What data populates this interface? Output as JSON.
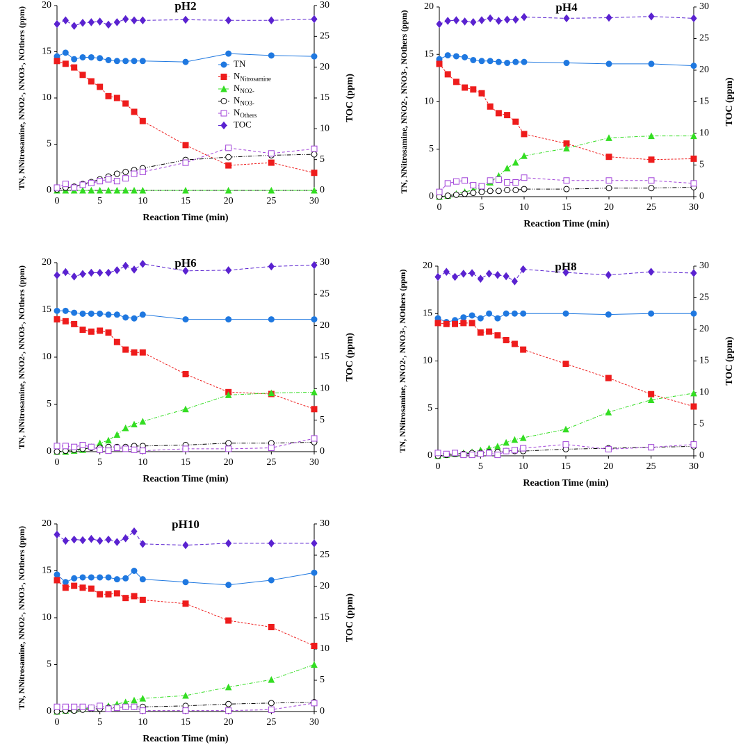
{
  "chart_data": [
    {
      "type": "line",
      "title": "pH2",
      "xlabel": "Reaction Time (min)",
      "ylabel": "TN, NNitrosamine, NNO2-, NNO3-, NOthers (ppm)",
      "y2label": "TOC (ppm)",
      "x": [
        0,
        1,
        2,
        3,
        4,
        5,
        6,
        7,
        8,
        9,
        10,
        15,
        20,
        25,
        30
      ],
      "xlim": [
        0,
        30
      ],
      "xticks": [
        0,
        5,
        10,
        15,
        20,
        25,
        30
      ],
      "ylim": [
        0,
        20
      ],
      "yticks": [
        0,
        5,
        10,
        15,
        20
      ],
      "y2lim": [
        0,
        30
      ],
      "y2ticks": [
        0,
        5,
        10,
        15,
        20,
        25,
        30
      ],
      "series": [
        {
          "name": "TN",
          "color": "#1f78e0",
          "values": [
            14.5,
            14.9,
            14.2,
            14.4,
            14.4,
            14.3,
            14.1,
            14.0,
            14.0,
            14.0,
            14.0,
            13.9,
            14.8,
            14.6,
            14.5
          ]
        },
        {
          "name": "NNitrosamine",
          "color": "#ee1c1c",
          "values": [
            14.0,
            13.7,
            13.3,
            12.5,
            11.8,
            11.2,
            10.2,
            10.0,
            9.4,
            8.5,
            7.5,
            4.9,
            2.7,
            3.0,
            1.9
          ]
        },
        {
          "name": "NNO2-",
          "color": "#33dd22",
          "values": [
            0,
            0,
            0,
            0,
            0,
            0,
            0,
            0,
            0,
            0,
            0,
            0,
            0,
            0,
            0
          ]
        },
        {
          "name": "NNO3-",
          "color": "#000000",
          "values": [
            0.1,
            0.3,
            0.4,
            0.7,
            0.9,
            1.2,
            1.5,
            1.8,
            2.0,
            2.2,
            2.4,
            3.3,
            3.6,
            3.8,
            3.9
          ]
        },
        {
          "name": "NOthers",
          "color": "#a040d8",
          "values": [
            0.3,
            0.7,
            0.3,
            0.6,
            0.8,
            1.0,
            1.2,
            1.0,
            1.3,
            1.8,
            2.0,
            3.0,
            4.6,
            4.0,
            4.5
          ]
        },
        {
          "name": "TOC",
          "color": "#5a22d0",
          "axis": "y2",
          "values": [
            27.0,
            27.6,
            26.7,
            27.2,
            27.3,
            27.4,
            26.9,
            27.3,
            27.8,
            27.6,
            27.6,
            27.7,
            27.6,
            27.6,
            27.8
          ]
        }
      ]
    },
    {
      "type": "line",
      "title": "pH4",
      "xlabel": "Reaction Time (min)",
      "ylabel": "TN, NNitrosamine, NNO2-, NNO3-, NOthers (ppm)",
      "y2label": "TOC (ppm)",
      "x": [
        0,
        1,
        2,
        3,
        4,
        5,
        6,
        7,
        8,
        9,
        10,
        15,
        20,
        25,
        30
      ],
      "xlim": [
        0,
        30
      ],
      "xticks": [
        0,
        5,
        10,
        15,
        20,
        25,
        30
      ],
      "ylim": [
        0,
        20
      ],
      "yticks": [
        0,
        5,
        10,
        15,
        20
      ],
      "y2lim": [
        0,
        30
      ],
      "y2ticks": [
        0,
        5,
        10,
        15,
        20,
        25,
        30
      ],
      "series": [
        {
          "color": "#1f78e0",
          "values": [
            14.5,
            14.9,
            14.8,
            14.7,
            14.4,
            14.3,
            14.3,
            14.2,
            14.1,
            14.2,
            14.2,
            14.1,
            14.0,
            14.0,
            13.8
          ]
        },
        {
          "color": "#ee1c1c",
          "values": [
            14.0,
            12.9,
            12.1,
            11.5,
            11.3,
            10.9,
            9.5,
            8.8,
            8.6,
            7.9,
            6.6,
            5.6,
            4.2,
            3.9,
            4.0
          ]
        },
        {
          "color": "#33dd22",
          "values": [
            0,
            0.1,
            0.3,
            0.5,
            0.7,
            1.0,
            1.5,
            2.2,
            3.0,
            3.6,
            4.3,
            5.1,
            6.2,
            6.4,
            6.4
          ]
        },
        {
          "color": "#000000",
          "values": [
            0,
            0.1,
            0.2,
            0.3,
            0.4,
            0.5,
            0.6,
            0.6,
            0.7,
            0.7,
            0.8,
            0.8,
            0.9,
            0.9,
            1.0
          ]
        },
        {
          "color": "#a040d8",
          "values": [
            0.5,
            1.4,
            1.6,
            1.7,
            1.2,
            1.1,
            1.7,
            1.8,
            1.5,
            1.5,
            2.0,
            1.7,
            1.7,
            1.7,
            1.4
          ]
        },
        {
          "color": "#5a22d0",
          "axis": "y2",
          "values": [
            27.3,
            27.8,
            27.9,
            27.7,
            27.6,
            27.9,
            28.2,
            27.8,
            28.0,
            28.0,
            28.4,
            28.2,
            28.3,
            28.5,
            28.2
          ]
        }
      ]
    },
    {
      "type": "line",
      "title": "pH6",
      "xlabel": "Reaction Time (min)",
      "ylabel": "TN, NNitrosamine, NNO2-, NNO3-, NOthers (ppm)",
      "y2label": "TOC (ppm)",
      "x": [
        0,
        1,
        2,
        3,
        4,
        5,
        6,
        7,
        8,
        9,
        10,
        15,
        20,
        25,
        30
      ],
      "xlim": [
        0,
        30
      ],
      "xticks": [
        0,
        5,
        10,
        15,
        20,
        25,
        30
      ],
      "ylim": [
        0,
        20
      ],
      "yticks": [
        0,
        5,
        10,
        15,
        20
      ],
      "y2lim": [
        0,
        30
      ],
      "y2ticks": [
        0,
        5,
        10,
        15,
        20,
        25,
        30
      ],
      "series": [
        {
          "color": "#1f78e0",
          "values": [
            14.9,
            14.9,
            14.7,
            14.6,
            14.6,
            14.6,
            14.5,
            14.5,
            14.2,
            14.1,
            14.5,
            14.0,
            14.0,
            14.0,
            14.0
          ]
        },
        {
          "color": "#ee1c1c",
          "values": [
            14.0,
            13.8,
            13.5,
            12.9,
            12.7,
            12.8,
            12.6,
            11.6,
            10.8,
            10.5,
            10.5,
            8.2,
            6.3,
            6.1,
            4.5
          ]
        },
        {
          "color": "#33dd22",
          "values": [
            0,
            0,
            0.1,
            0.2,
            0.5,
            0.9,
            1.2,
            1.8,
            2.5,
            2.9,
            3.2,
            4.5,
            6.0,
            6.2,
            6.3
          ]
        },
        {
          "color": "#000000",
          "values": [
            0,
            0.1,
            0.2,
            0.3,
            0.4,
            0.4,
            0.5,
            0.5,
            0.5,
            0.6,
            0.6,
            0.7,
            0.9,
            0.9,
            1.0
          ]
        },
        {
          "color": "#a040d8",
          "values": [
            0.6,
            0.6,
            0.5,
            0.7,
            0.5,
            0.2,
            0.1,
            0.4,
            0.3,
            0.2,
            0.1,
            0.3,
            0.3,
            0.4,
            1.4
          ]
        },
        {
          "color": "#5a22d0",
          "axis": "y2",
          "values": [
            28.0,
            28.5,
            27.8,
            28.2,
            28.4,
            28.4,
            28.4,
            28.8,
            29.5,
            28.9,
            29.8,
            28.7,
            28.8,
            29.4,
            29.6
          ]
        }
      ]
    },
    {
      "type": "line",
      "title": "pH8",
      "xlabel": "Reaction Time (min)",
      "ylabel": "TN, NNitrosamine, NNO2-, NNO3-, NOthers (ppm)",
      "y2label": "TOC (ppm)",
      "x": [
        0,
        1,
        2,
        3,
        4,
        5,
        6,
        7,
        8,
        9,
        10,
        15,
        20,
        25,
        30
      ],
      "xlim": [
        0,
        30
      ],
      "xticks": [
        0,
        5,
        10,
        15,
        20,
        25,
        30
      ],
      "ylim": [
        0,
        20
      ],
      "yticks": [
        0,
        5,
        10,
        15,
        20
      ],
      "y2lim": [
        0,
        30
      ],
      "y2ticks": [
        0,
        5,
        10,
        15,
        20,
        25,
        30
      ],
      "series": [
        {
          "color": "#1f78e0",
          "values": [
            14.5,
            14.1,
            14.3,
            14.6,
            14.8,
            14.5,
            15.0,
            14.5,
            15.0,
            15.0,
            15.0,
            15.0,
            14.9,
            15.0,
            15.0
          ]
        },
        {
          "color": "#ee1c1c",
          "values": [
            14.0,
            13.9,
            13.9,
            14.0,
            14.0,
            13.0,
            13.1,
            12.7,
            12.2,
            11.8,
            11.2,
            9.7,
            8.2,
            6.5,
            5.2
          ]
        },
        {
          "color": "#33dd22",
          "values": [
            0,
            0.1,
            0.2,
            0.3,
            0.4,
            0.6,
            0.8,
            1.0,
            1.4,
            1.7,
            1.9,
            2.8,
            4.6,
            5.9,
            6.6
          ]
        },
        {
          "color": "#000000",
          "values": [
            0,
            0.1,
            0.2,
            0.2,
            0.3,
            0.3,
            0.4,
            0.4,
            0.5,
            0.5,
            0.5,
            0.7,
            0.8,
            0.9,
            1.0
          ]
        },
        {
          "color": "#a040d8",
          "values": [
            0.3,
            0.2,
            0.3,
            0.1,
            0.1,
            0.2,
            0.3,
            0.1,
            0.5,
            0.6,
            0.8,
            1.2,
            0.7,
            0.9,
            1.2
          ]
        },
        {
          "color": "#5a22d0",
          "axis": "y2",
          "values": [
            28.3,
            29.1,
            28.3,
            28.8,
            28.9,
            28.0,
            28.8,
            28.6,
            28.4,
            27.6,
            29.5,
            29.0,
            28.6,
            29.1,
            28.9
          ]
        }
      ]
    },
    {
      "type": "line",
      "title": "pH10",
      "xlabel": "Reaction Time (min)",
      "ylabel": "TN, NNitrosamine, NNO2-, NNO3-, NOthers (ppm)",
      "y2label": "TOC (ppm)",
      "x": [
        0,
        1,
        2,
        3,
        4,
        5,
        6,
        7,
        8,
        9,
        10,
        15,
        20,
        25,
        30
      ],
      "xlim": [
        0,
        30
      ],
      "xticks": [
        0,
        5,
        10,
        15,
        20,
        25,
        30
      ],
      "ylim": [
        0,
        20
      ],
      "yticks": [
        0,
        5,
        10,
        15,
        20
      ],
      "y2lim": [
        0,
        30
      ],
      "y2ticks": [
        0,
        5,
        10,
        15,
        20,
        25,
        30
      ],
      "series": [
        {
          "color": "#1f78e0",
          "values": [
            14.6,
            13.8,
            14.2,
            14.3,
            14.3,
            14.3,
            14.3,
            14.1,
            14.2,
            15.0,
            14.1,
            13.8,
            13.5,
            14.0,
            14.8
          ]
        },
        {
          "color": "#ee1c1c",
          "values": [
            14.0,
            13.2,
            13.4,
            13.2,
            13.1,
            12.5,
            12.5,
            12.6,
            12.1,
            12.3,
            11.9,
            11.5,
            9.7,
            9.0,
            7.0
          ]
        },
        {
          "color": "#33dd22",
          "values": [
            0,
            0.1,
            0.2,
            0.3,
            0.4,
            0.5,
            0.6,
            0.8,
            1.0,
            1.2,
            1.4,
            1.7,
            2.6,
            3.4,
            5.0
          ]
        },
        {
          "color": "#000000",
          "values": [
            0,
            0.1,
            0.1,
            0.2,
            0.3,
            0.3,
            0.4,
            0.4,
            0.5,
            0.5,
            0.5,
            0.6,
            0.8,
            0.9,
            1.0
          ]
        },
        {
          "color": "#a040d8",
          "values": [
            0.5,
            0.5,
            0.5,
            0.5,
            0.4,
            0.6,
            0.3,
            0.4,
            0.5,
            0.5,
            0.1,
            0.1,
            0.1,
            0.2,
            0.9
          ]
        },
        {
          "color": "#5a22d0",
          "axis": "y2",
          "values": [
            28.3,
            27.3,
            27.5,
            27.4,
            27.6,
            27.3,
            27.5,
            27.1,
            27.7,
            28.8,
            26.8,
            26.6,
            26.9,
            26.9,
            26.9
          ]
        }
      ]
    }
  ]
}
